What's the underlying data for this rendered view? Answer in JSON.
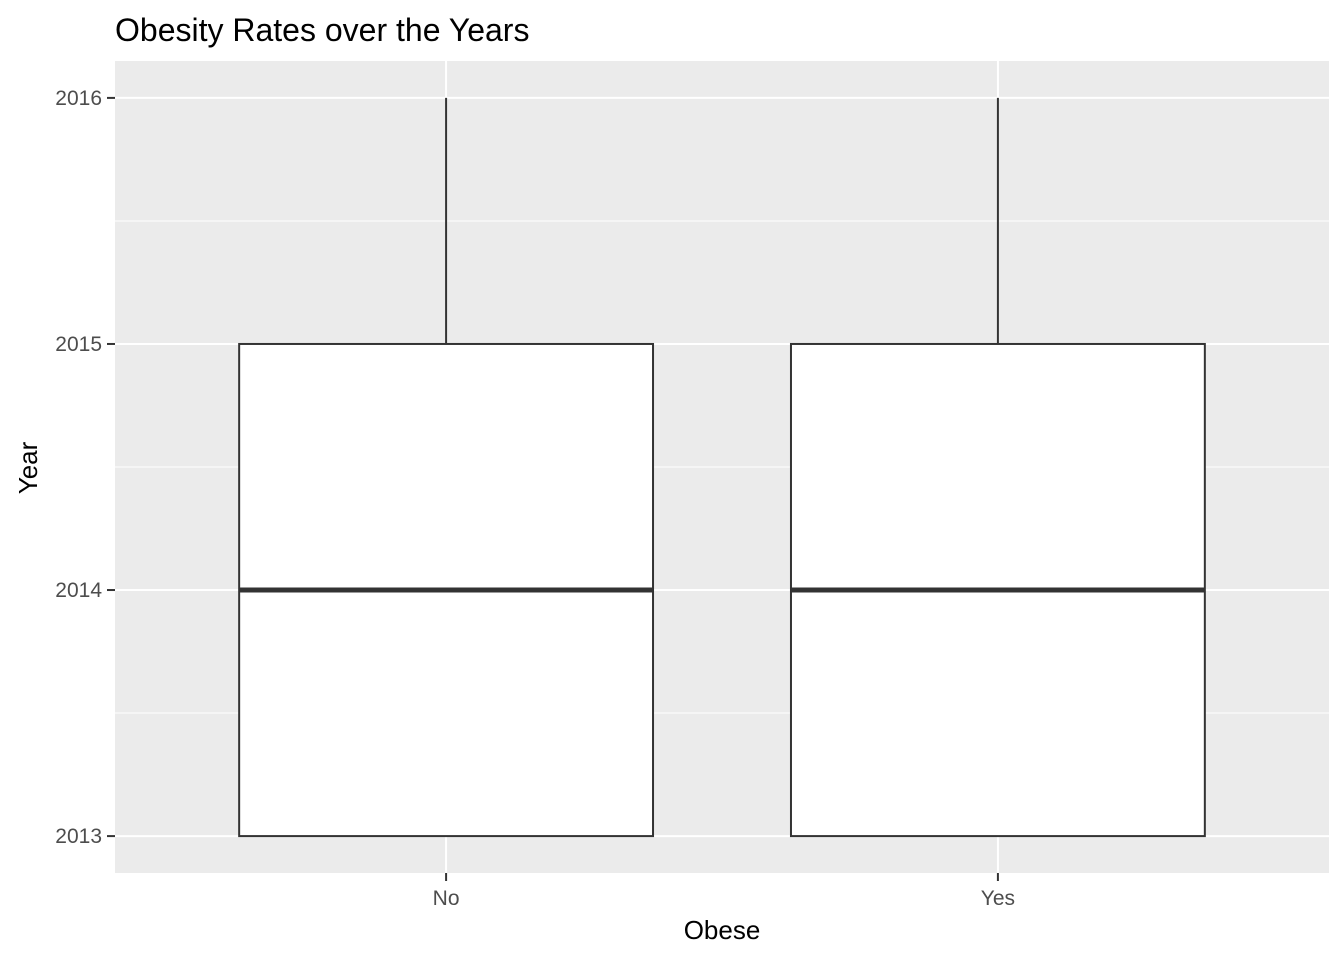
{
  "chart_data": {
    "type": "boxplot",
    "title": "Obesity Rates over the Years",
    "xlabel": "Obese",
    "ylabel": "Year",
    "categories": [
      "No",
      "Yes"
    ],
    "boxes": [
      {
        "category": "No",
        "min": 2013,
        "q1": 2013,
        "median": 2014,
        "q3": 2015,
        "max": 2016
      },
      {
        "category": "Yes",
        "min": 2013,
        "q1": 2013,
        "median": 2014,
        "q3": 2015,
        "max": 2016
      }
    ],
    "ylim": [
      2012.85,
      2016.15
    ],
    "yticks": [
      2013,
      2014,
      2015,
      2016
    ],
    "grid": true,
    "legend": "none",
    "colors": {
      "panel": "#ebebeb",
      "grid": "#ffffff",
      "box_fill": "#ffffff",
      "box_stroke": "#333333",
      "tick_text": "#4d4d4d"
    }
  }
}
